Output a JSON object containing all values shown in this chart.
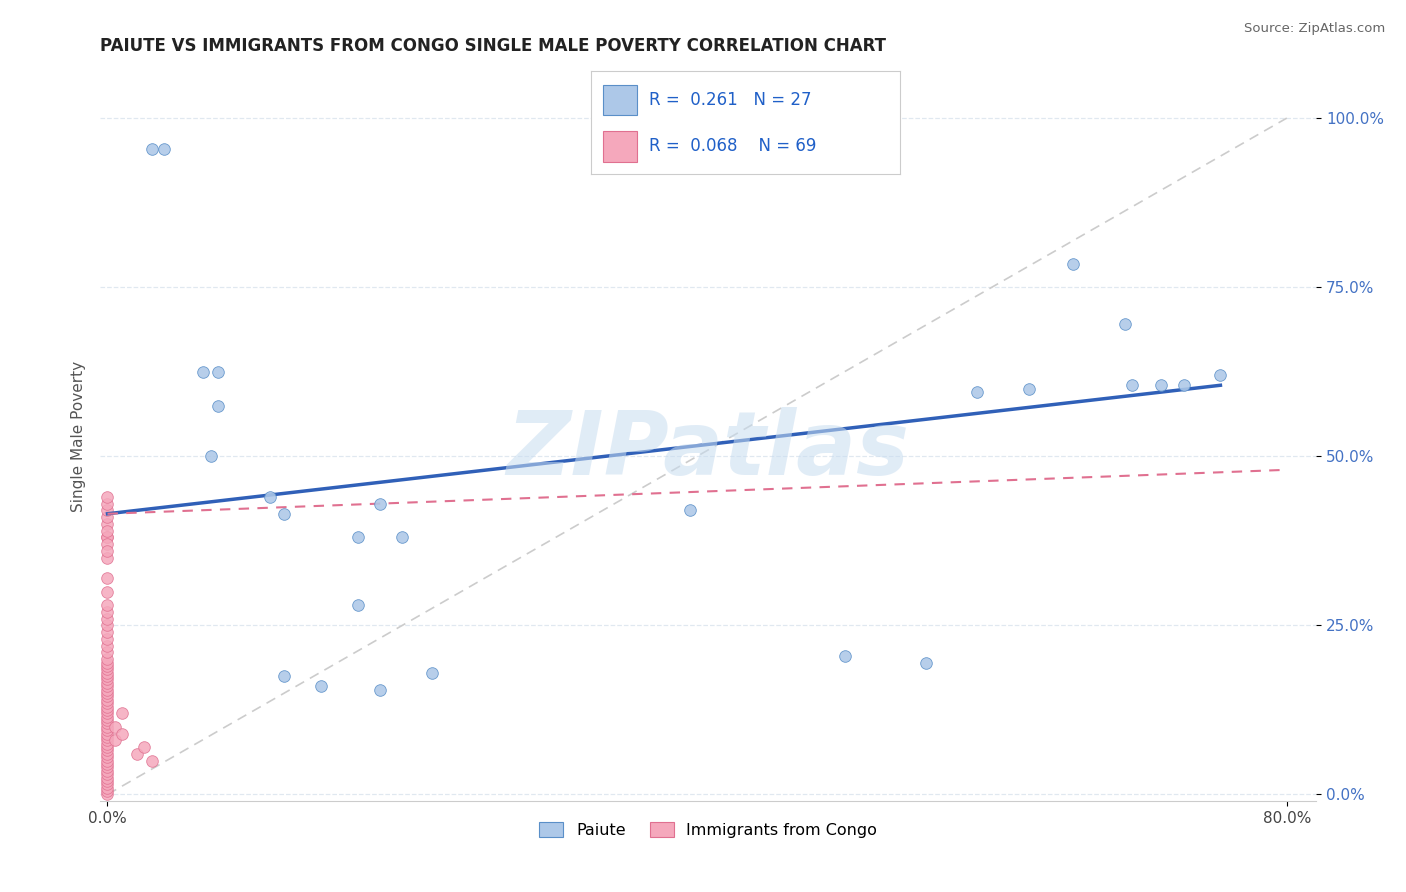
{
  "title": "PAIUTE VS IMMIGRANTS FROM CONGO SINGLE MALE POVERTY CORRELATION CHART",
  "source": "Source: ZipAtlas.com",
  "ylabel": "Single Male Poverty",
  "ytick_labels": [
    "0.0%",
    "25.0%",
    "50.0%",
    "75.0%",
    "100.0%"
  ],
  "ytick_values": [
    0.0,
    0.25,
    0.5,
    0.75,
    1.0
  ],
  "xtick_labels": [
    "0.0%",
    "80.0%"
  ],
  "xtick_values": [
    0.0,
    0.8
  ],
  "xlim": [
    -0.005,
    0.82
  ],
  "ylim": [
    -0.01,
    1.07
  ],
  "legend_series": [
    "Paiute",
    "Immigrants from Congo"
  ],
  "R_paiute": "0.261",
  "N_paiute": "27",
  "R_congo": "0.068",
  "N_congo": "69",
  "paiute_color": "#adc8e8",
  "congo_color": "#f5a8bc",
  "paiute_edge_color": "#5a8fc8",
  "congo_edge_color": "#e07090",
  "trendline_paiute_color": "#3060b8",
  "trendline_congo_color": "#e07090",
  "ref_line_color": "#cccccc",
  "background_color": "#ffffff",
  "watermark_text": "ZIPatlas",
  "watermark_color": "#c8ddf0",
  "grid_color": "#e0e8f0",
  "paiute_x": [
    0.03,
    0.038,
    0.065,
    0.075,
    0.075,
    0.07,
    0.11,
    0.12,
    0.17,
    0.185,
    0.655,
    0.69,
    0.695,
    0.715,
    0.73,
    0.755,
    0.12,
    0.17,
    0.2,
    0.395,
    0.5,
    0.555,
    0.59,
    0.625,
    0.145,
    0.185,
    0.22
  ],
  "paiute_y": [
    0.955,
    0.955,
    0.625,
    0.625,
    0.575,
    0.5,
    0.44,
    0.415,
    0.38,
    0.43,
    0.785,
    0.695,
    0.605,
    0.605,
    0.605,
    0.62,
    0.175,
    0.28,
    0.38,
    0.42,
    0.205,
    0.195,
    0.595,
    0.6,
    0.16,
    0.155,
    0.18
  ],
  "congo_x": [
    0.0,
    0.0,
    0.0,
    0.0,
    0.0,
    0.0,
    0.0,
    0.0,
    0.0,
    0.0,
    0.0,
    0.0,
    0.0,
    0.0,
    0.0,
    0.0,
    0.0,
    0.0,
    0.0,
    0.0,
    0.0,
    0.0,
    0.0,
    0.0,
    0.0,
    0.0,
    0.0,
    0.0,
    0.0,
    0.0,
    0.0,
    0.0,
    0.0,
    0.0,
    0.0,
    0.0,
    0.0,
    0.0,
    0.0,
    0.0,
    0.0,
    0.0,
    0.0,
    0.0,
    0.0,
    0.0,
    0.0,
    0.0,
    0.0,
    0.0,
    0.0,
    0.0,
    0.0,
    0.0,
    0.0,
    0.0,
    0.0,
    0.0,
    0.0,
    0.0,
    0.0,
    0.0,
    0.005,
    0.005,
    0.01,
    0.01,
    0.02,
    0.025,
    0.03
  ],
  "congo_y": [
    0.0,
    0.005,
    0.01,
    0.015,
    0.02,
    0.025,
    0.03,
    0.035,
    0.04,
    0.045,
    0.05,
    0.055,
    0.06,
    0.065,
    0.07,
    0.075,
    0.08,
    0.085,
    0.09,
    0.095,
    0.1,
    0.105,
    0.11,
    0.115,
    0.12,
    0.125,
    0.13,
    0.135,
    0.14,
    0.145,
    0.15,
    0.155,
    0.16,
    0.165,
    0.17,
    0.175,
    0.18,
    0.185,
    0.19,
    0.195,
    0.2,
    0.21,
    0.22,
    0.23,
    0.24,
    0.25,
    0.26,
    0.27,
    0.28,
    0.3,
    0.32,
    0.35,
    0.38,
    0.4,
    0.41,
    0.42,
    0.43,
    0.44,
    0.38,
    0.39,
    0.37,
    0.36,
    0.1,
    0.08,
    0.12,
    0.09,
    0.06,
    0.07,
    0.05
  ],
  "paiute_trendline_x0": 0.0,
  "paiute_trendline_y0": 0.415,
  "paiute_trendline_x1": 0.755,
  "paiute_trendline_y1": 0.605,
  "congo_trendline_x0": 0.0,
  "congo_trendline_y0": 0.415,
  "congo_trendline_x1": 0.8,
  "congo_trendline_y1": 0.48
}
